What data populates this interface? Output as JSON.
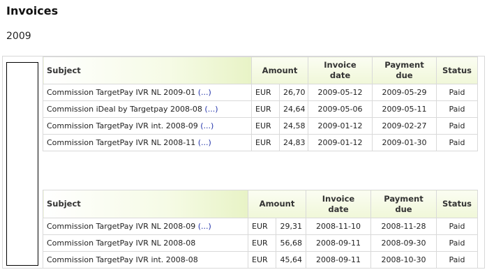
{
  "page": {
    "title": "Invoices",
    "year": "2009"
  },
  "table_headers": {
    "subject": "Subject",
    "amount": "Amount",
    "invoice_date_line1": "Invoice",
    "invoice_date_line2": "date",
    "payment_due_line1": "Payment",
    "payment_due_line2": "due",
    "status": "Status"
  },
  "tables": [
    {
      "rows": [
        {
          "subject": "Commission TargetPay IVR NL 2009-01",
          "more": "(...)",
          "currency": "EUR",
          "amount": "26,70",
          "invoice_date": "2009-05-12",
          "payment_due": "2009-05-29",
          "status": "Paid"
        },
        {
          "subject": "Commission iDeal by Targetpay 2008-08",
          "more": "(...)",
          "currency": "EUR",
          "amount": "24,64",
          "invoice_date": "2009-05-06",
          "payment_due": "2009-05-11",
          "status": "Paid"
        },
        {
          "subject": "Commission TargetPay IVR int. 2008-09",
          "more": "(...)",
          "currency": "EUR",
          "amount": "24,58",
          "invoice_date": "2009-01-12",
          "payment_due": "2009-02-27",
          "status": "Paid"
        },
        {
          "subject": "Commission TargetPay IVR NL 2008-11",
          "more": "(...)",
          "currency": "EUR",
          "amount": "24,83",
          "invoice_date": "2009-01-12",
          "payment_due": "2009-01-30",
          "status": "Paid"
        }
      ]
    },
    {
      "rows": [
        {
          "subject": "Commission TargetPay IVR NL 2008-09",
          "more": "(...)",
          "currency": "EUR",
          "amount": "29,31",
          "invoice_date": "2008-11-10",
          "payment_due": "2008-11-28",
          "status": "Paid"
        },
        {
          "subject": "Commission TargetPay IVR NL 2008-08",
          "more": "",
          "currency": "EUR",
          "amount": "56,68",
          "invoice_date": "2008-09-11",
          "payment_due": "2008-09-30",
          "status": "Paid"
        },
        {
          "subject": "Commission TargetPay IVR int. 2008-08",
          "more": "",
          "currency": "EUR",
          "amount": "45,64",
          "invoice_date": "2008-09-11",
          "payment_due": "2008-10-30",
          "status": "Paid"
        }
      ]
    }
  ]
}
